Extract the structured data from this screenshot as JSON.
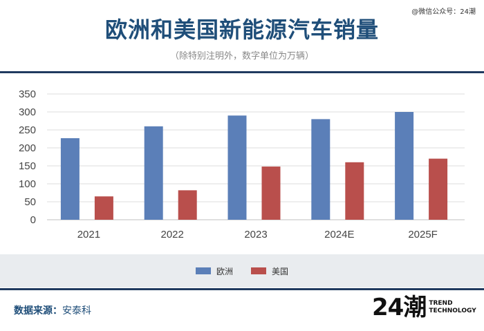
{
  "watermark": "@微信公众号：24潮",
  "header": {
    "title": "欧洲和美国新能源汽车销量",
    "subtitle": "（除特别注明外，数字单位为万辆）"
  },
  "colors": {
    "europe": "#5b7fb8",
    "usa": "#b94f4c",
    "accent": "#1f4e79"
  },
  "chart_data": {
    "type": "bar",
    "categories": [
      "2021",
      "2022",
      "2023",
      "2024E",
      "2025F"
    ],
    "series": [
      {
        "name": "欧洲",
        "values": [
          227,
          260,
          290,
          280,
          300
        ]
      },
      {
        "name": "美国",
        "values": [
          65,
          82,
          148,
          160,
          170
        ]
      }
    ],
    "yticks": [
      "0",
      "50",
      "100",
      "150",
      "200",
      "250",
      "300",
      "350"
    ],
    "ylim": [
      0,
      350
    ],
    "grid": true,
    "legend_position": "bottom"
  },
  "footer": {
    "source_label": "数据来源：",
    "source_value": "安泰科",
    "logo_mark": "24潮",
    "logo_line1": "TREND",
    "logo_line2": "TECHNOLOGY"
  }
}
